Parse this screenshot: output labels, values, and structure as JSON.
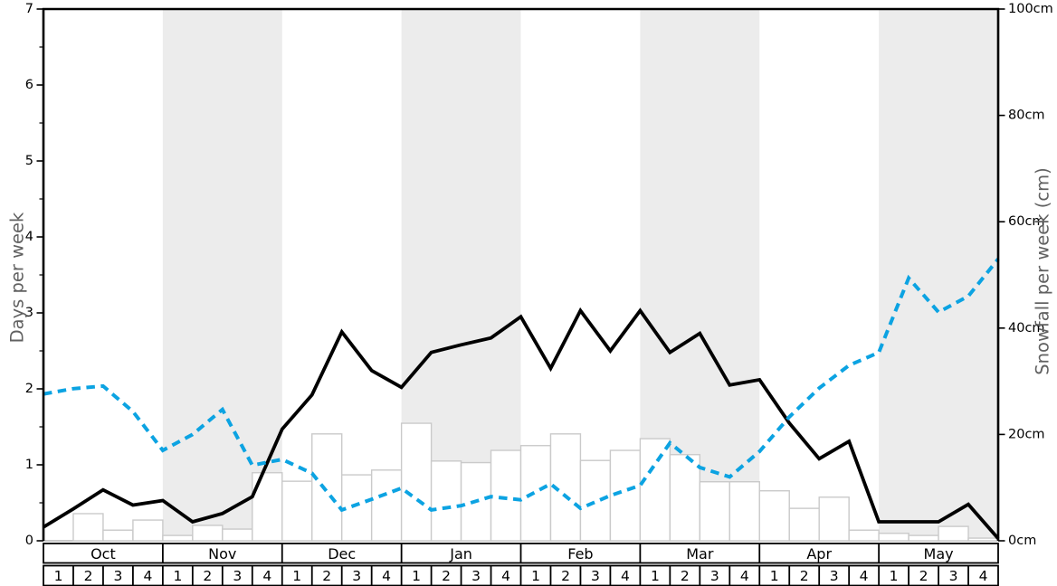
{
  "figure": {
    "background": "#ffffff"
  },
  "chart_data": {
    "type": "line",
    "title": "",
    "months": [
      "Oct",
      "Nov",
      "Dec",
      "Jan",
      "Feb",
      "Mar",
      "Apr",
      "May"
    ],
    "weeks_per_month": 4,
    "week_labels": [
      "1",
      "2",
      "3",
      "4"
    ],
    "shaded_month_indices": [
      1,
      3,
      5,
      7
    ],
    "legend": "none",
    "grid": "off",
    "colors": {
      "days_line": "#000000",
      "snowfall_line": "#0ca3e2",
      "bar_fill": "#ffffff",
      "bar_border": "#cacaca",
      "month_band": "#ececec",
      "tick_text": "#000000",
      "axis_title": "#616161",
      "baseline": "#b5b5b5",
      "spine": "#000000",
      "table_border": "#000000"
    },
    "axes": {
      "left": {
        "label": "Days per week",
        "min": 0,
        "max": 7,
        "major_ticks": [
          0,
          1,
          2,
          3,
          4,
          5,
          6,
          7
        ],
        "minor_step": 0.5,
        "tick_suffix": ""
      },
      "right": {
        "label": "Snowfall per week (cm)",
        "min": 0,
        "max": 100,
        "major_ticks": [
          0,
          20,
          40,
          60,
          80,
          100
        ],
        "tick_suffix": "cm"
      }
    },
    "x_note": "line points are weekly, from start of Oct week 1 to end of May week 4 (33 points); bars are one per week (32 values)",
    "series": [
      {
        "name": "days_per_week",
        "axis": "left",
        "style": "solid",
        "values": [
          0.18,
          0.42,
          0.67,
          0.47,
          0.53,
          0.25,
          0.36,
          0.58,
          1.47,
          1.92,
          2.75,
          2.24,
          2.02,
          2.48,
          2.58,
          2.67,
          2.95,
          2.27,
          3.03,
          2.5,
          3.03,
          2.48,
          2.73,
          2.05,
          2.12,
          1.55,
          1.08,
          1.31,
          0.25,
          0.25,
          0.25,
          0.48,
          0.03
        ]
      },
      {
        "name": "snowfall_per_week_cm",
        "axis": "right",
        "style": "dashed",
        "values": [
          27.6,
          28.6,
          29.1,
          24.3,
          17,
          20,
          24.7,
          14.2,
          15.3,
          12.7,
          5.8,
          7.8,
          9.9,
          5.8,
          6.6,
          8.3,
          7.7,
          10.7,
          6.1,
          8.5,
          10.4,
          18.4,
          13.8,
          12,
          16.8,
          23.3,
          28.7,
          33,
          35.4,
          49.4,
          43,
          46,
          53
        ]
      },
      {
        "name": "weekly_snowfall_bars_cm",
        "axis": "right",
        "style": "bar",
        "values": [
          0,
          5.1,
          2,
          3.9,
          1,
          2.9,
          2.2,
          12.8,
          11.2,
          20.1,
          12.4,
          13.3,
          22.1,
          15,
          14.7,
          17,
          17.9,
          20.1,
          15.1,
          17,
          19.2,
          16.2,
          11.1,
          11.1,
          9.4,
          6.1,
          8.2,
          2,
          1.4,
          1,
          2.7,
          0.5
        ]
      }
    ]
  }
}
